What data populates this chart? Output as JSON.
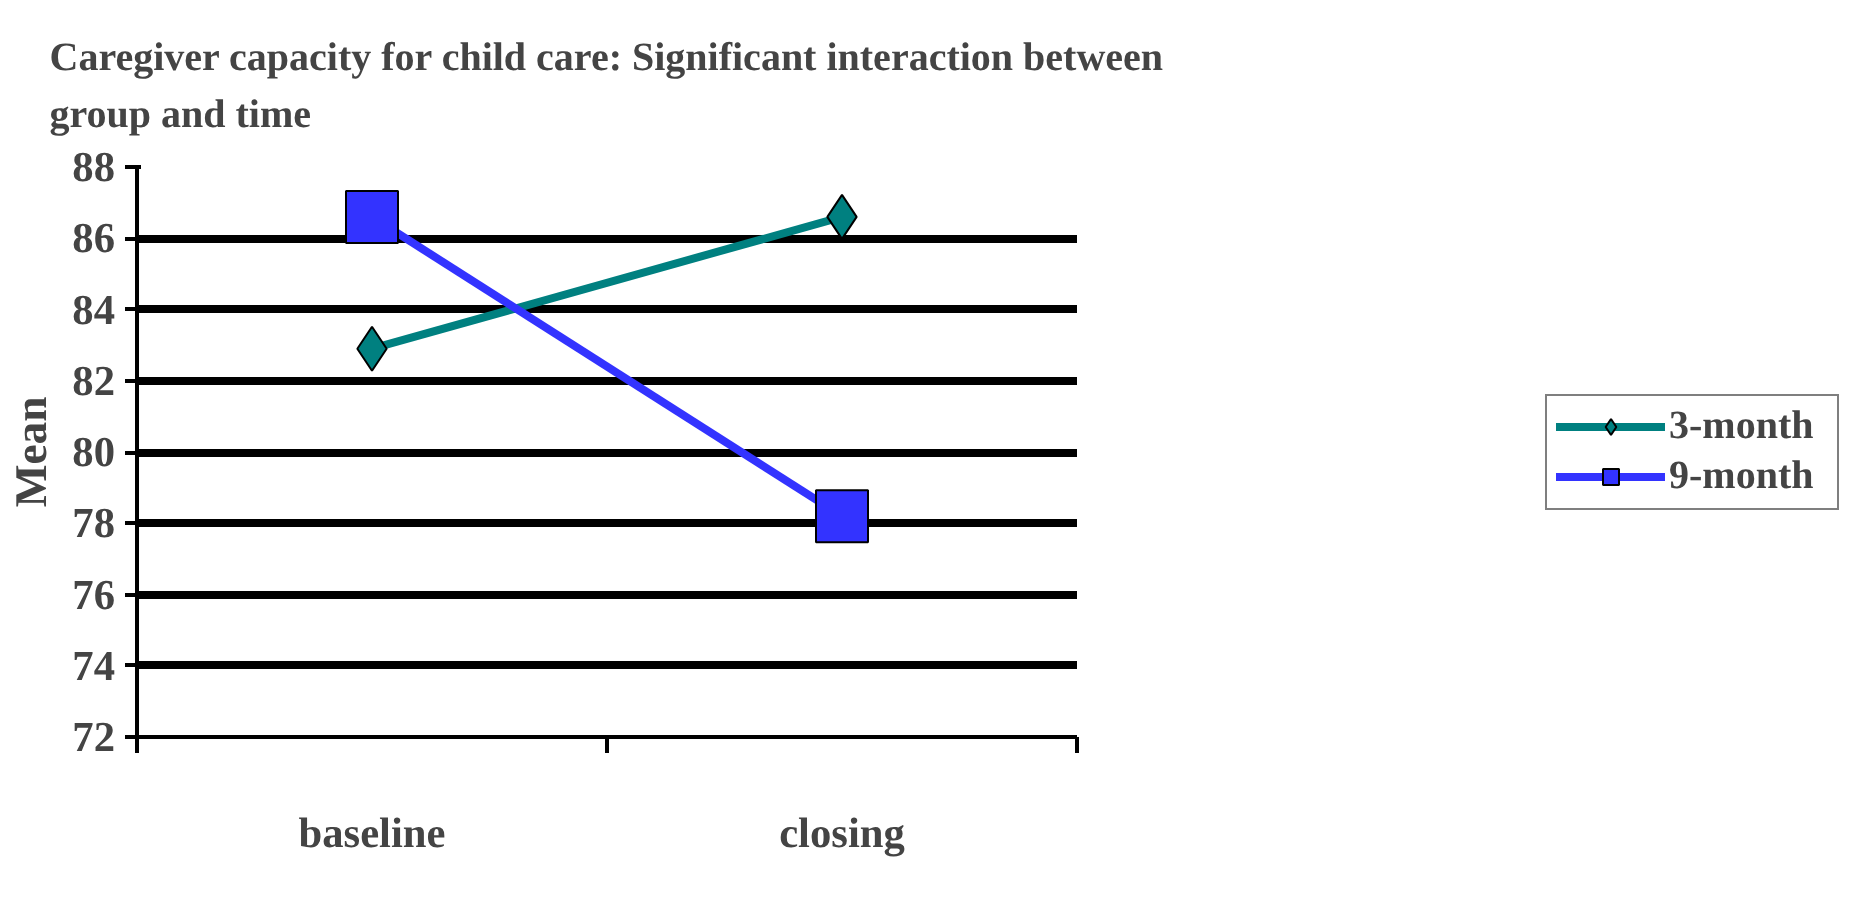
{
  "chart_data": {
    "type": "line",
    "title": "Caregiver capacity for child care: Significant interaction between\ngroup and time",
    "ylabel": "Mean",
    "categories": [
      "baseline",
      "closing"
    ],
    "series": [
      {
        "name": "3-month",
        "color": "#008080",
        "values": [
          82.9,
          86.6
        ],
        "marker": "diamond"
      },
      {
        "name": "9-month",
        "color": "#3333ff",
        "values": [
          86.6,
          78.2
        ],
        "marker": "square"
      }
    ],
    "ylim": [
      72,
      88
    ],
    "yticks": [
      72,
      74,
      76,
      78,
      80,
      82,
      84,
      86,
      88
    ],
    "grid": "y",
    "legend": "right"
  }
}
